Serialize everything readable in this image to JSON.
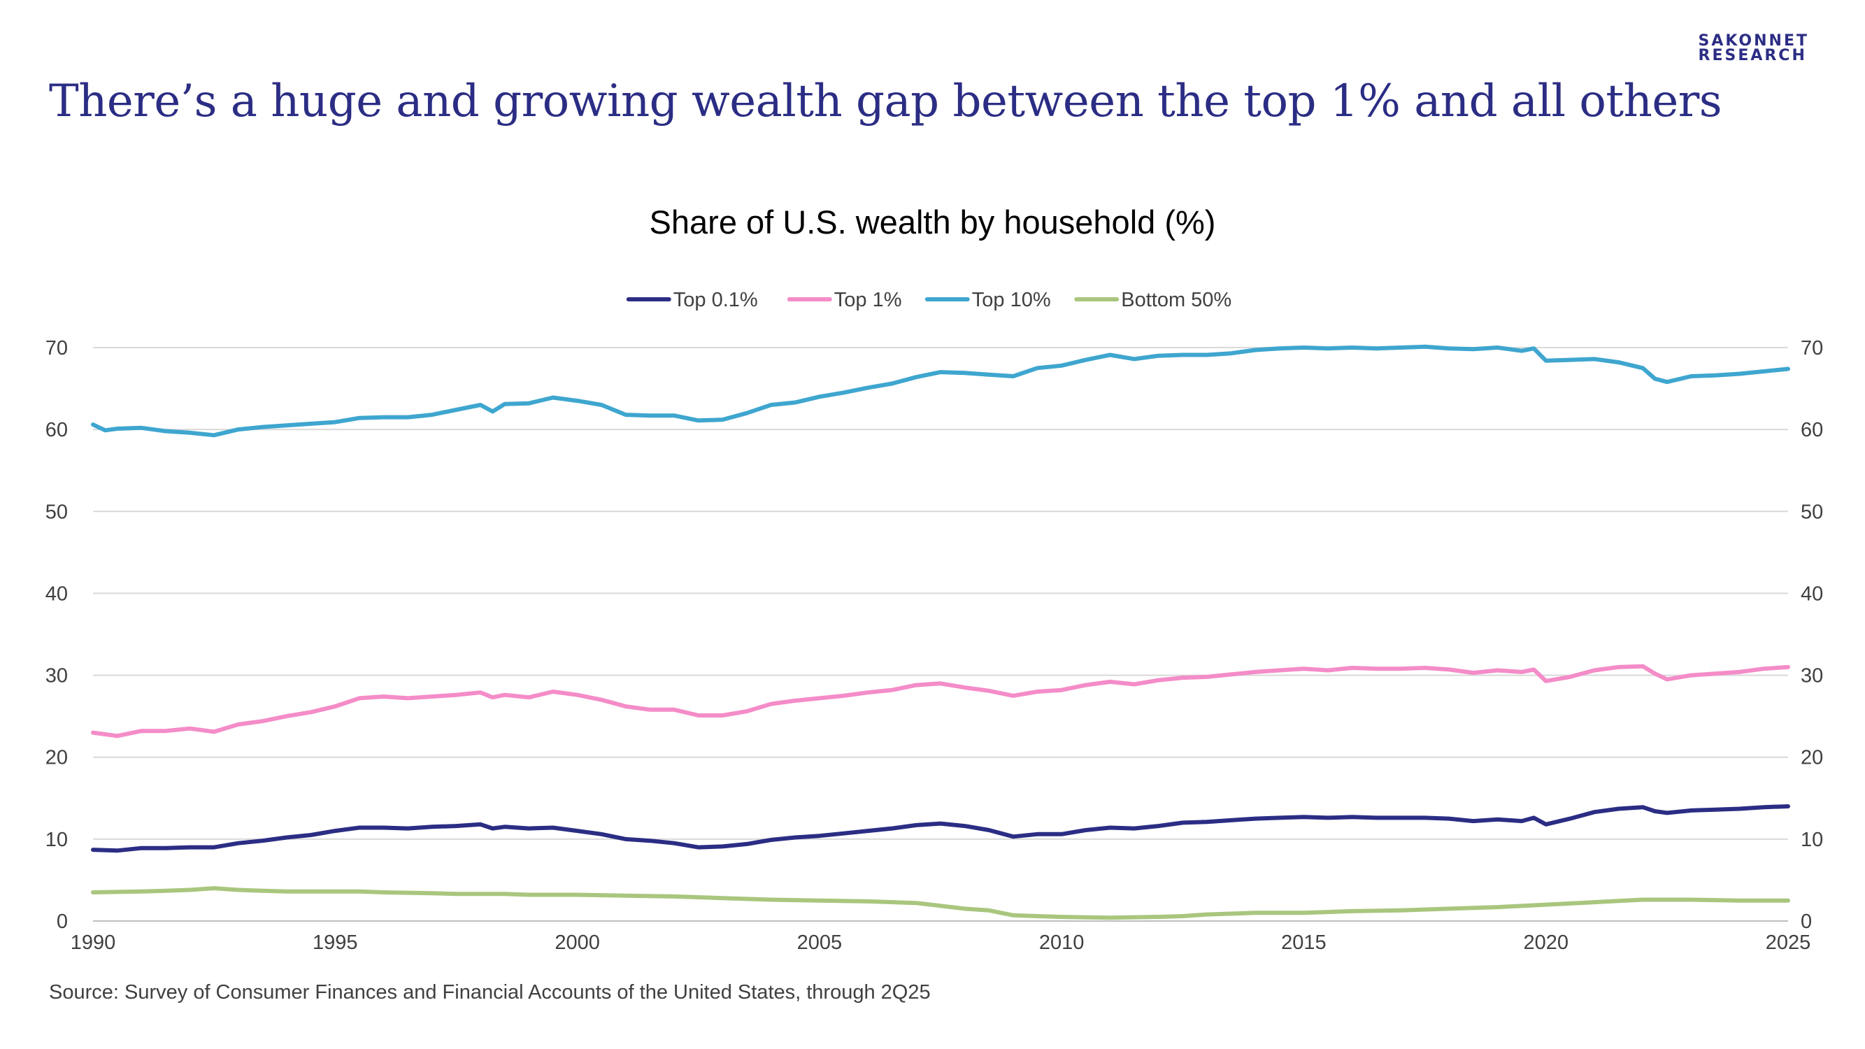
{
  "brand": {
    "line1": "SAKONNET",
    "line2": "RESEARCH"
  },
  "headline": "There’s a huge and growing wealth gap between the top 1% and all others",
  "source": "Source: Survey of Consumer Finances and Financial Accounts of the United States, through 2Q25",
  "chart_data": {
    "type": "line",
    "title": "Share of U.S. wealth by household (%)",
    "xlabel": "",
    "ylabel": "",
    "xlim": [
      1990,
      2025
    ],
    "ylim": [
      0,
      70
    ],
    "x_ticks": [
      "1990",
      "1995",
      "2000",
      "2005",
      "2010",
      "2015",
      "2020",
      "2025"
    ],
    "y_ticks": [
      "0",
      "10",
      "20",
      "30",
      "40",
      "50",
      "60",
      "70"
    ],
    "y_axis_both_sides": true,
    "grid": "horizontal",
    "legend_position": "top-center",
    "series": [
      {
        "name": "Top 0.1%",
        "color": "#2b2d84",
        "points": [
          [
            1990,
            8.7
          ],
          [
            1990.5,
            8.6
          ],
          [
            1991,
            8.9
          ],
          [
            1991.5,
            8.9
          ],
          [
            1992,
            9.0
          ],
          [
            1992.5,
            9.0
          ],
          [
            1993,
            9.5
          ],
          [
            1993.5,
            9.8
          ],
          [
            1994,
            10.2
          ],
          [
            1994.5,
            10.5
          ],
          [
            1995,
            11.0
          ],
          [
            1995.5,
            11.4
          ],
          [
            1996,
            11.4
          ],
          [
            1996.5,
            11.3
          ],
          [
            1997,
            11.5
          ],
          [
            1997.5,
            11.6
          ],
          [
            1998,
            11.8
          ],
          [
            1998.25,
            11.3
          ],
          [
            1998.5,
            11.5
          ],
          [
            1999,
            11.3
          ],
          [
            1999.5,
            11.4
          ],
          [
            2000,
            11.0
          ],
          [
            2000.5,
            10.6
          ],
          [
            2001,
            10.0
          ],
          [
            2001.5,
            9.8
          ],
          [
            2002,
            9.5
          ],
          [
            2002.5,
            9.0
          ],
          [
            2003,
            9.1
          ],
          [
            2003.5,
            9.4
          ],
          [
            2004,
            9.9
          ],
          [
            2004.5,
            10.2
          ],
          [
            2005,
            10.4
          ],
          [
            2005.5,
            10.7
          ],
          [
            2006,
            11.0
          ],
          [
            2006.5,
            11.3
          ],
          [
            2007,
            11.7
          ],
          [
            2007.5,
            11.9
          ],
          [
            2008,
            11.6
          ],
          [
            2008.5,
            11.1
          ],
          [
            2009,
            10.3
          ],
          [
            2009.5,
            10.6
          ],
          [
            2010,
            10.6
          ],
          [
            2010.5,
            11.1
          ],
          [
            2011,
            11.4
          ],
          [
            2011.5,
            11.3
          ],
          [
            2012,
            11.6
          ],
          [
            2012.5,
            12.0
          ],
          [
            2013,
            12.1
          ],
          [
            2013.5,
            12.3
          ],
          [
            2014,
            12.5
          ],
          [
            2014.5,
            12.6
          ],
          [
            2015,
            12.7
          ],
          [
            2015.5,
            12.6
          ],
          [
            2016,
            12.7
          ],
          [
            2016.5,
            12.6
          ],
          [
            2017,
            12.6
          ],
          [
            2017.5,
            12.6
          ],
          [
            2018,
            12.5
          ],
          [
            2018.5,
            12.2
          ],
          [
            2019,
            12.4
          ],
          [
            2019.5,
            12.2
          ],
          [
            2019.75,
            12.6
          ],
          [
            2020,
            11.8
          ],
          [
            2020.5,
            12.5
          ],
          [
            2021,
            13.3
          ],
          [
            2021.5,
            13.7
          ],
          [
            2022,
            13.9
          ],
          [
            2022.25,
            13.4
          ],
          [
            2022.5,
            13.2
          ],
          [
            2023,
            13.5
          ],
          [
            2023.5,
            13.6
          ],
          [
            2024,
            13.7
          ],
          [
            2024.5,
            13.9
          ],
          [
            2025,
            14.0
          ]
        ]
      },
      {
        "name": "Top 1%",
        "color": "#f48cc8",
        "points": [
          [
            1990,
            23.0
          ],
          [
            1990.5,
            22.6
          ],
          [
            1991,
            23.2
          ],
          [
            1991.5,
            23.2
          ],
          [
            1992,
            23.5
          ],
          [
            1992.5,
            23.1
          ],
          [
            1993,
            24.0
          ],
          [
            1993.5,
            24.4
          ],
          [
            1994,
            25.0
          ],
          [
            1994.5,
            25.5
          ],
          [
            1995,
            26.2
          ],
          [
            1995.5,
            27.2
          ],
          [
            1996,
            27.4
          ],
          [
            1996.5,
            27.2
          ],
          [
            1997,
            27.4
          ],
          [
            1997.5,
            27.6
          ],
          [
            1998,
            27.9
          ],
          [
            1998.25,
            27.3
          ],
          [
            1998.5,
            27.6
          ],
          [
            1999,
            27.3
          ],
          [
            1999.5,
            28.0
          ],
          [
            2000,
            27.6
          ],
          [
            2000.5,
            27.0
          ],
          [
            2001,
            26.2
          ],
          [
            2001.5,
            25.8
          ],
          [
            2002,
            25.8
          ],
          [
            2002.5,
            25.1
          ],
          [
            2003,
            25.1
          ],
          [
            2003.5,
            25.6
          ],
          [
            2004,
            26.5
          ],
          [
            2004.5,
            26.9
          ],
          [
            2005,
            27.2
          ],
          [
            2005.5,
            27.5
          ],
          [
            2006,
            27.9
          ],
          [
            2006.5,
            28.2
          ],
          [
            2007,
            28.8
          ],
          [
            2007.5,
            29.0
          ],
          [
            2008,
            28.5
          ],
          [
            2008.5,
            28.1
          ],
          [
            2009,
            27.5
          ],
          [
            2009.5,
            28.0
          ],
          [
            2010,
            28.2
          ],
          [
            2010.5,
            28.8
          ],
          [
            2011,
            29.2
          ],
          [
            2011.5,
            28.9
          ],
          [
            2012,
            29.4
          ],
          [
            2012.5,
            29.7
          ],
          [
            2013,
            29.8
          ],
          [
            2013.5,
            30.1
          ],
          [
            2014,
            30.4
          ],
          [
            2014.5,
            30.6
          ],
          [
            2015,
            30.8
          ],
          [
            2015.5,
            30.6
          ],
          [
            2016,
            30.9
          ],
          [
            2016.5,
            30.8
          ],
          [
            2017,
            30.8
          ],
          [
            2017.5,
            30.9
          ],
          [
            2018,
            30.7
          ],
          [
            2018.5,
            30.3
          ],
          [
            2019,
            30.6
          ],
          [
            2019.5,
            30.4
          ],
          [
            2019.75,
            30.7
          ],
          [
            2020,
            29.3
          ],
          [
            2020.5,
            29.8
          ],
          [
            2021,
            30.6
          ],
          [
            2021.5,
            31.0
          ],
          [
            2022,
            31.1
          ],
          [
            2022.25,
            30.2
          ],
          [
            2022.5,
            29.5
          ],
          [
            2023,
            30.0
          ],
          [
            2023.5,
            30.2
          ],
          [
            2024,
            30.4
          ],
          [
            2024.5,
            30.8
          ],
          [
            2025,
            31.0
          ]
        ]
      },
      {
        "name": "Top 10%",
        "color": "#3ea6cf",
        "points": [
          [
            1990,
            60.6
          ],
          [
            1990.25,
            59.9
          ],
          [
            1990.5,
            60.1
          ],
          [
            1991,
            60.2
          ],
          [
            1991.5,
            59.8
          ],
          [
            1992,
            59.6
          ],
          [
            1992.5,
            59.3
          ],
          [
            1993,
            60.0
          ],
          [
            1993.5,
            60.3
          ],
          [
            1994,
            60.5
          ],
          [
            1994.5,
            60.7
          ],
          [
            1995,
            60.9
          ],
          [
            1995.5,
            61.4
          ],
          [
            1996,
            61.5
          ],
          [
            1996.5,
            61.5
          ],
          [
            1997,
            61.8
          ],
          [
            1997.5,
            62.4
          ],
          [
            1998,
            63.0
          ],
          [
            1998.25,
            62.2
          ],
          [
            1998.5,
            63.1
          ],
          [
            1999,
            63.2
          ],
          [
            1999.5,
            63.9
          ],
          [
            2000,
            63.5
          ],
          [
            2000.5,
            63.0
          ],
          [
            2001,
            61.8
          ],
          [
            2001.5,
            61.7
          ],
          [
            2002,
            61.7
          ],
          [
            2002.5,
            61.1
          ],
          [
            2003,
            61.2
          ],
          [
            2003.5,
            62.0
          ],
          [
            2004,
            63.0
          ],
          [
            2004.5,
            63.3
          ],
          [
            2005,
            64.0
          ],
          [
            2005.5,
            64.5
          ],
          [
            2006,
            65.1
          ],
          [
            2006.5,
            65.6
          ],
          [
            2007,
            66.4
          ],
          [
            2007.5,
            67.0
          ],
          [
            2008,
            66.9
          ],
          [
            2008.5,
            66.7
          ],
          [
            2009,
            66.5
          ],
          [
            2009.5,
            67.5
          ],
          [
            2010,
            67.8
          ],
          [
            2010.5,
            68.5
          ],
          [
            2011,
            69.1
          ],
          [
            2011.5,
            68.6
          ],
          [
            2012,
            69.0
          ],
          [
            2012.5,
            69.1
          ],
          [
            2013,
            69.1
          ],
          [
            2013.5,
            69.3
          ],
          [
            2014,
            69.7
          ],
          [
            2014.5,
            69.9
          ],
          [
            2015,
            70.0
          ],
          [
            2015.5,
            69.9
          ],
          [
            2016,
            70.0
          ],
          [
            2016.5,
            69.9
          ],
          [
            2017,
            70.0
          ],
          [
            2017.5,
            70.1
          ],
          [
            2018,
            69.9
          ],
          [
            2018.5,
            69.8
          ],
          [
            2019,
            70.0
          ],
          [
            2019.5,
            69.6
          ],
          [
            2019.75,
            69.9
          ],
          [
            2020,
            68.4
          ],
          [
            2020.5,
            68.5
          ],
          [
            2021,
            68.6
          ],
          [
            2021.5,
            68.2
          ],
          [
            2022,
            67.5
          ],
          [
            2022.25,
            66.2
          ],
          [
            2022.5,
            65.8
          ],
          [
            2023,
            66.5
          ],
          [
            2023.5,
            66.6
          ],
          [
            2024,
            66.8
          ],
          [
            2024.5,
            67.1
          ],
          [
            2025,
            67.4
          ]
        ]
      },
      {
        "name": "Bottom 50%",
        "color": "#a9c67e",
        "points": [
          [
            1990,
            3.5
          ],
          [
            1991,
            3.6
          ],
          [
            1991.5,
            3.7
          ],
          [
            1992,
            3.8
          ],
          [
            1992.5,
            4.0
          ],
          [
            1993,
            3.8
          ],
          [
            1993.5,
            3.7
          ],
          [
            1994,
            3.6
          ],
          [
            1995,
            3.6
          ],
          [
            1995.5,
            3.6
          ],
          [
            1996,
            3.5
          ],
          [
            1997,
            3.4
          ],
          [
            1997.5,
            3.3
          ],
          [
            1998,
            3.3
          ],
          [
            1998.5,
            3.3
          ],
          [
            1999,
            3.2
          ],
          [
            2000,
            3.2
          ],
          [
            2001,
            3.1
          ],
          [
            2002,
            3.0
          ],
          [
            2003,
            2.8
          ],
          [
            2004,
            2.6
          ],
          [
            2005,
            2.5
          ],
          [
            2006,
            2.4
          ],
          [
            2007,
            2.2
          ],
          [
            2008,
            1.5
          ],
          [
            2008.5,
            1.3
          ],
          [
            2009,
            0.7
          ],
          [
            2009.5,
            0.6
          ],
          [
            2010,
            0.5
          ],
          [
            2011,
            0.4
          ],
          [
            2012,
            0.5
          ],
          [
            2012.5,
            0.6
          ],
          [
            2013,
            0.8
          ],
          [
            2014,
            1.0
          ],
          [
            2015,
            1.0
          ],
          [
            2016,
            1.2
          ],
          [
            2017,
            1.3
          ],
          [
            2018,
            1.5
          ],
          [
            2019,
            1.7
          ],
          [
            2020,
            2.0
          ],
          [
            2021,
            2.3
          ],
          [
            2022,
            2.6
          ],
          [
            2023,
            2.6
          ],
          [
            2024,
            2.5
          ],
          [
            2025,
            2.5
          ]
        ]
      }
    ]
  }
}
